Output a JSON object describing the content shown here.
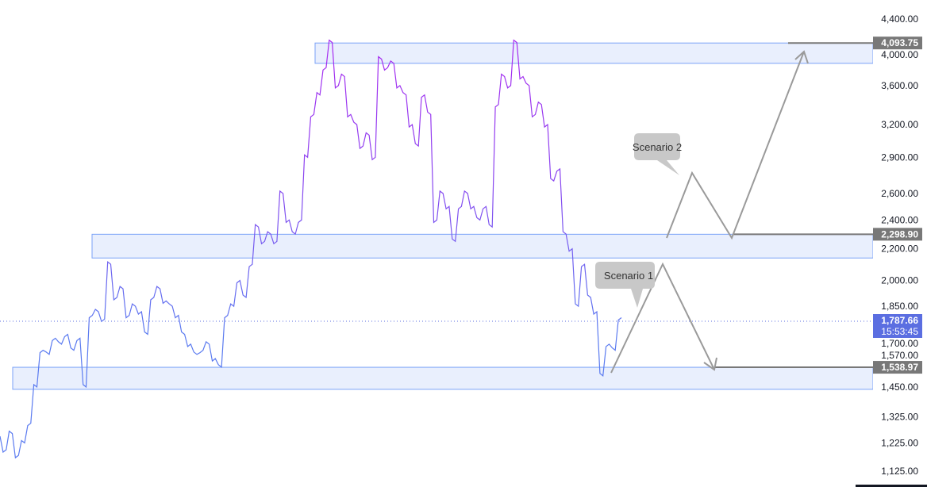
{
  "chart_data": {
    "type": "line",
    "y_scale": "log",
    "ylim": [
      1100,
      4900
    ],
    "grid": false,
    "y_ticks": [
      "4,400.00",
      "4,000.00",
      "3,600.00",
      "3,200.00",
      "2,900.00",
      "2,600.00",
      "2,400.00",
      "2,200.00",
      "2,000.00",
      "1,850.00",
      "1,700.00",
      "1,570.00",
      "1,450.00",
      "1,325.00",
      "1,225.00",
      "1,125.00"
    ],
    "y_tick_values": [
      4400,
      4000,
      3600,
      3200,
      2900,
      2600,
      2400,
      2200,
      2000,
      1850,
      1700,
      1570,
      1450,
      1325,
      1225,
      1125
    ],
    "series": [
      {
        "values": [
          1250,
          1200,
          1260,
          1180,
          1225,
          1300,
          1450,
          1620,
          1600,
          1680,
          1650,
          1700,
          1620,
          1680,
          1450,
          1800,
          1820,
          1780,
          2100,
          1900,
          1950,
          1800,
          1850,
          1820,
          1700,
          1900,
          1950,
          1880,
          1850,
          1800,
          1700,
          1650,
          1600,
          1620,
          1650,
          1580,
          1540,
          1800,
          1850,
          2000,
          1900,
          2100,
          2350,
          2250,
          2300,
          2250,
          2600,
          2400,
          2300,
          2400,
          2900,
          3300,
          3500,
          3800,
          4100,
          3600,
          3700,
          3300,
          3200,
          3000,
          3100,
          2900,
          3900,
          3800,
          3850,
          3600,
          3500,
          3200,
          3000,
          3500,
          3300,
          2400,
          2600,
          2500,
          2250,
          2500,
          2600,
          2500,
          2400,
          2500,
          2350,
          3400,
          3700,
          3600,
          4100,
          3700,
          3600,
          3300,
          3400,
          3200,
          2700,
          2800,
          2300,
          2200,
          1850,
          2100,
          1900,
          1820,
          1500,
          1650,
          1620,
          1787.66
        ]
      }
    ],
    "last_price": "1,787.66",
    "countdown": "15:53:45",
    "price_labels": [
      "4,093.75",
      "2,298.90",
      "1,538.97"
    ],
    "zones": [
      {
        "from": 3850,
        "to": 4093.75
      },
      {
        "from": 2140,
        "to": 2298.9
      },
      {
        "from": 1440,
        "to": 1538.97
      }
    ],
    "annotations": [
      "Scenario 1",
      "Scenario 2"
    ],
    "colors": {
      "line_low": "#5b7bf0",
      "line_high": "#a72bf0",
      "zone_fill": "#e9effd",
      "zone_border": "#7aa2f7",
      "label_gray": "#787878",
      "last_price": "#5b6ee1"
    }
  }
}
